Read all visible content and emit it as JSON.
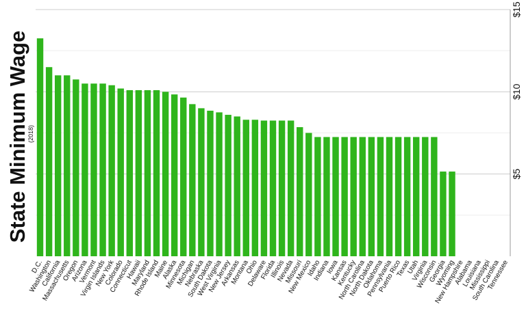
{
  "chart_data": {
    "type": "bar",
    "title": "State Minimum Wage",
    "subtitle": "(2018)",
    "categories": [
      "D.C.",
      "Washington",
      "California",
      "Massachusetts",
      "Oregon",
      "Arizona",
      "Vermont",
      "Virgin Islands",
      "New York",
      "Colorado",
      "Connecticut",
      "Hawaii",
      "Maryland",
      "Rhode Island",
      "Maine",
      "Alaska",
      "Minnesota",
      "Michigan",
      "Nebraska",
      "South Dakota",
      "West Virginia",
      "New Jersey",
      "Arkansas",
      "Montana",
      "Ohio",
      "Delaware",
      "Florida",
      "Illinois",
      "Nevada",
      "Missouri",
      "New Mexico",
      "Idaho",
      "Indiana",
      "Iowa",
      "Kansas",
      "Kentucky",
      "North Carolina",
      "North Dakota",
      "Oklahoma",
      "Pennsylvania",
      "Puerto Rico",
      "Texas",
      "Utah",
      "Virginia",
      "Wisconsin",
      "Georgia",
      "Wyoming",
      "New Hampshire",
      "Alabama",
      "Louisiana",
      "Mississippi",
      "South Carolina",
      "Tennessee"
    ],
    "values": [
      13.25,
      11.5,
      11.0,
      11.0,
      10.75,
      10.5,
      10.5,
      10.5,
      10.4,
      10.2,
      10.1,
      10.1,
      10.1,
      10.1,
      10.0,
      9.84,
      9.65,
      9.25,
      9.0,
      8.85,
      8.75,
      8.6,
      8.5,
      8.3,
      8.3,
      8.25,
      8.25,
      8.25,
      8.25,
      7.85,
      7.5,
      7.25,
      7.25,
      7.25,
      7.25,
      7.25,
      7.25,
      7.25,
      7.25,
      7.25,
      7.25,
      7.25,
      7.25,
      7.25,
      7.25,
      5.15,
      5.15,
      null,
      null,
      null,
      null,
      null,
      null
    ],
    "color": "#2fb51c",
    "ylim": [
      0,
      15
    ],
    "yticks": [
      {
        "value": 5,
        "label": "$5"
      },
      {
        "value": 10,
        "label": "$10"
      },
      {
        "value": 15,
        "label": "$15"
      }
    ],
    "minor_yticks": [
      2.5,
      7.5,
      12.5
    ],
    "grid": true
  }
}
